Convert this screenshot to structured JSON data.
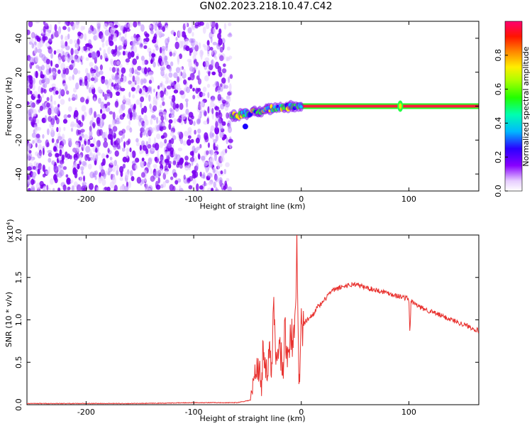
{
  "title": "GN02.2023.218.10.47.C42",
  "chart_data": [
    {
      "type": "heatmap",
      "xlabel": "Height of straight line (km)",
      "ylabel": "Frequency (Hz)",
      "xlim": [
        -255,
        165
      ],
      "ylim": [
        -50,
        50
      ],
      "xticks": [
        -200,
        -100,
        0,
        100
      ],
      "xtick_labels": [
        "-200",
        "-100",
        "0",
        "100"
      ],
      "yticks": [
        -40,
        -20,
        0,
        20,
        40
      ],
      "ytick_labels": [
        "-40",
        "-20",
        "0",
        "20",
        "40"
      ],
      "colorbar": {
        "label": "Normalized spectral amplitude",
        "range": [
          0,
          1
        ],
        "ticks": [
          0,
          0.2,
          0.4,
          0.6,
          0.8
        ],
        "tick_labels": [
          "0.0",
          "0.2",
          "0.4",
          "0.6",
          "0.8"
        ]
      },
      "regions": [
        {
          "desc": "broadband noise",
          "x_range": [
            -255,
            -65
          ],
          "y_range": [
            -50,
            50
          ],
          "amplitude": [
            0.05,
            0.3
          ]
        },
        {
          "desc": "wandering tone",
          "x_range": [
            -65,
            0
          ],
          "y_center": [
            -5,
            0
          ],
          "amplitude": [
            0.2,
            0.6
          ]
        },
        {
          "desc": "steady tone",
          "x_range": [
            0,
            165
          ],
          "y_center": 0,
          "amplitude": 1.0
        }
      ]
    },
    {
      "type": "line",
      "xlabel": "Height of straight line (km)",
      "ylabel": "SNR (10 * v/v)",
      "y_multiplier_label": "(x10",
      "y_multiplier_exp": "4",
      "y_multiplier_close": ")",
      "xlim": [
        -255,
        165
      ],
      "ylim": [
        0,
        2.0
      ],
      "xticks": [
        -200,
        -100,
        0,
        100
      ],
      "xtick_labels": [
        "-200",
        "-100",
        "0",
        "100"
      ],
      "yticks": [
        0,
        0.5,
        1.0,
        1.5,
        2.0
      ],
      "ytick_labels": [
        "0.0",
        "0.5",
        "1.0",
        "1.5",
        "2.0"
      ],
      "color": "#e8312e",
      "x": [
        -255,
        -200,
        -150,
        -100,
        -60,
        -47,
        -44,
        -40,
        -37,
        -35,
        -32,
        -30,
        -28,
        -25,
        -23,
        -20,
        -17,
        -15,
        -12,
        -10,
        -8,
        -6,
        -4,
        -2,
        0,
        5,
        10,
        15,
        20,
        25,
        30,
        40,
        50,
        60,
        70,
        80,
        90,
        100,
        101,
        102,
        110,
        120,
        130,
        140,
        150,
        160,
        165
      ],
      "y": [
        0.01,
        0.01,
        0.01,
        0.02,
        0.02,
        0.05,
        0.3,
        0.5,
        0.2,
        0.8,
        0.3,
        0.6,
        0.4,
        1.2,
        0.5,
        0.7,
        0.4,
        0.9,
        0.5,
        1.0,
        0.6,
        0.9,
        2.0,
        0.2,
        0.9,
        1.0,
        1.05,
        1.15,
        1.2,
        1.3,
        1.35,
        1.4,
        1.42,
        1.38,
        1.35,
        1.32,
        1.28,
        1.25,
        0.82,
        1.22,
        1.15,
        1.1,
        1.05,
        1.0,
        0.95,
        0.9,
        0.87
      ]
    }
  ]
}
